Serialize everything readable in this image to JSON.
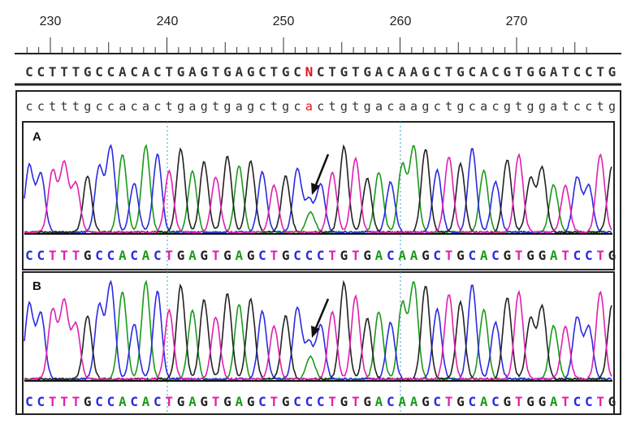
{
  "ruler": {
    "labels": [
      "230",
      "240",
      "250",
      "260",
      "270"
    ],
    "positions": [
      230,
      240,
      250,
      260,
      270
    ]
  },
  "consensus": {
    "sequence": "CCTTTGCCACACTGAGTGAGCTGCNCTGTGACAAGCTGCACGTGGATCCTG",
    "ambiguous_base": "N",
    "ambiguous_color": "#e0141e"
  },
  "reference": {
    "sequence": "cctttgccacactgagtgagctgcactgtgacaagctgcacgtggatcctg",
    "highlight_color": "#e0141e"
  },
  "panels": [
    {
      "label": "A",
      "called_sequence": "CCTTTGCCACACTGAGTGAGCTGCCCTGTGACAAGCTGCACGTGGATCCTG"
    },
    {
      "label": "B",
      "called_sequence": "CCTTTGCCACACTGAGTGAGCTGCCCTGTGACAAGCTGCACGTGGATCCTG"
    }
  ],
  "base_colors": {
    "A": "#1a9a1a",
    "C": "#2a2ae0",
    "G": "#222222",
    "T": "#e020b0"
  },
  "chart_data": {
    "type": "line",
    "title": "",
    "xlabel": "",
    "ylabel": "",
    "x_start": 227,
    "x_end": 277,
    "series": [
      {
        "channel": "A",
        "color": "#1a9a1a"
      },
      {
        "channel": "C",
        "color": "#2a2ae0"
      },
      {
        "channel": "G",
        "color": "#222222"
      },
      {
        "channel": "T",
        "color": "#e020b0"
      }
    ]
  }
}
